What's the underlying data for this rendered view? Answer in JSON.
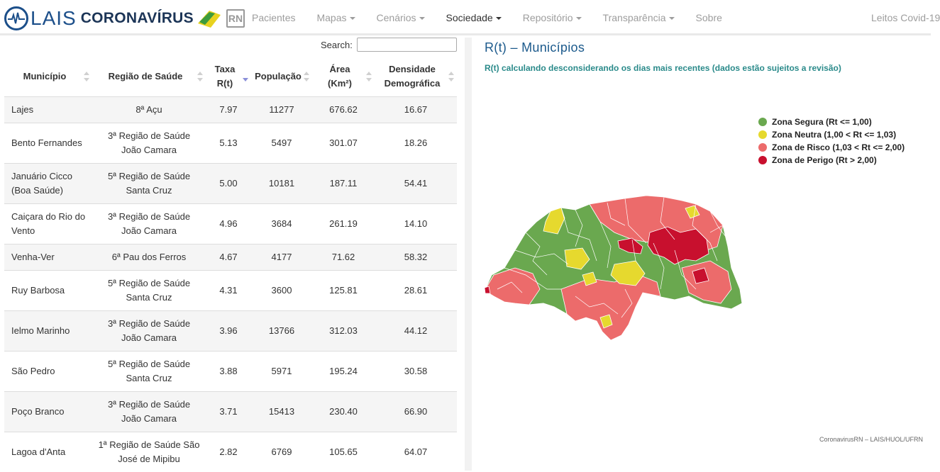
{
  "brand": {
    "logo_text": "LAIS",
    "title": "CORONAVÍRUS",
    "badge": "RN"
  },
  "nav": {
    "items": [
      {
        "label": "Pacientes",
        "dropdown": false
      },
      {
        "label": "Mapas",
        "dropdown": true
      },
      {
        "label": "Cenários",
        "dropdown": true
      },
      {
        "label": "Sociedade",
        "dropdown": true
      },
      {
        "label": "Repositório",
        "dropdown": true
      },
      {
        "label": "Transparência",
        "dropdown": true
      },
      {
        "label": "Sobre",
        "dropdown": false
      }
    ],
    "right": "Leitos Covid-19"
  },
  "search": {
    "label": "Search:",
    "value": ""
  },
  "table": {
    "headers": {
      "municipio": "Município",
      "regiao": "Região de Saúde",
      "taxa_1": "Taxa",
      "taxa_2": "R(t)",
      "populacao": "População",
      "area_1": "Área",
      "area_2": "(Km²)",
      "densidade_1": "Densidade",
      "densidade_2": "Demográfica"
    },
    "rows": [
      {
        "mun1": "Lajes",
        "mun2": "",
        "reg1": "8ª Açu",
        "reg2": "",
        "rt": "7.97",
        "pop": "11277",
        "area": "676.62",
        "dens": "16.67"
      },
      {
        "mun1": "Bento Fernandes",
        "mun2": "",
        "reg1": "3ª Região de Saúde",
        "reg2": "João Camara",
        "rt": "5.13",
        "pop": "5497",
        "area": "301.07",
        "dens": "18.26"
      },
      {
        "mun1": "Januário Cicco",
        "mun2": "(Boa Saúde)",
        "reg1": "5ª Região de Saúde",
        "reg2": "Santa Cruz",
        "rt": "5.00",
        "pop": "10181",
        "area": "187.11",
        "dens": "54.41"
      },
      {
        "mun1": "Caiçara do Rio do",
        "mun2": "Vento",
        "reg1": "3ª Região de Saúde",
        "reg2": "João Camara",
        "rt": "4.96",
        "pop": "3684",
        "area": "261.19",
        "dens": "14.10"
      },
      {
        "mun1": "Venha-Ver",
        "mun2": "",
        "reg1": "6ª Pau dos Ferros",
        "reg2": "",
        "rt": "4.67",
        "pop": "4177",
        "area": "71.62",
        "dens": "58.32"
      },
      {
        "mun1": "Ruy Barbosa",
        "mun2": "",
        "reg1": "5ª Região de Saúde",
        "reg2": "Santa Cruz",
        "rt": "4.31",
        "pop": "3600",
        "area": "125.81",
        "dens": "28.61"
      },
      {
        "mun1": "Ielmo Marinho",
        "mun2": "",
        "reg1": "3ª Região de Saúde",
        "reg2": "João Camara",
        "rt": "3.96",
        "pop": "13766",
        "area": "312.03",
        "dens": "44.12"
      },
      {
        "mun1": "São Pedro",
        "mun2": "",
        "reg1": "5ª Região de Saúde",
        "reg2": "Santa Cruz",
        "rt": "3.88",
        "pop": "5971",
        "area": "195.24",
        "dens": "30.58"
      },
      {
        "mun1": "Poço Branco",
        "mun2": "",
        "reg1": "3ª Região de Saúde",
        "reg2": "João Camara",
        "rt": "3.71",
        "pop": "15413",
        "area": "230.40",
        "dens": "66.90"
      },
      {
        "mun1": "Lagoa d'Anta",
        "mun2": "",
        "reg1": "1ª Região de Saúde São",
        "reg2": "José de Mipibu",
        "rt": "2.82",
        "pop": "6769",
        "area": "105.65",
        "dens": "64.07"
      }
    ]
  },
  "map": {
    "title": "R(t) – Municípios",
    "subtitle": "R(t) calculando desconsiderando os dias mais recentes (dados estão sujeitos a revisão)",
    "legend": [
      {
        "label": "Zona Segura (Rt <= 1,00)",
        "color": "#6aa84f"
      },
      {
        "label": "Zona Neutra (1,00 < Rt <= 1,03)",
        "color": "#e6d92e"
      },
      {
        "label": "Zona de Risco (1,03 < Rt <= 2,00)",
        "color": "#ec6b6b"
      },
      {
        "label": "Zona de Perigo (Rt > 2,00)",
        "color": "#c8102e"
      }
    ],
    "credit": "CoronavirusRN – LAIS/HUOL/UFRN"
  }
}
